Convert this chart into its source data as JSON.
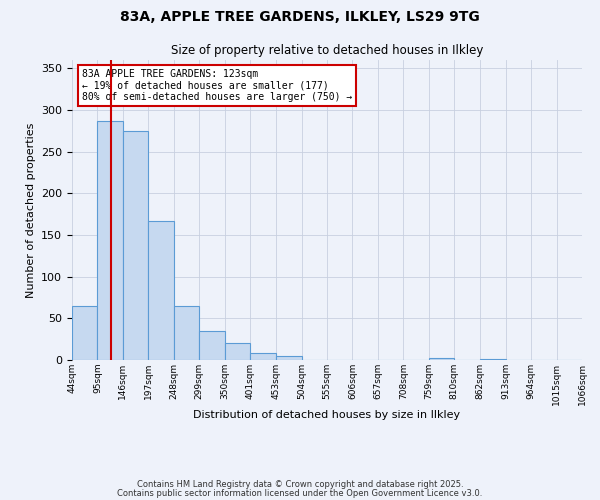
{
  "title_line1": "83A, APPLE TREE GARDENS, ILKLEY, LS29 9TG",
  "title_line2": "Size of property relative to detached houses in Ilkley",
  "xlabel": "Distribution of detached houses by size in Ilkley",
  "ylabel": "Number of detached properties",
  "bin_edges": [
    44,
    95,
    146,
    197,
    248,
    299,
    350,
    401,
    453,
    504,
    555,
    606,
    657,
    708,
    759,
    810,
    862,
    913,
    964,
    1015,
    1066
  ],
  "bin_labels": [
    "44sqm",
    "95sqm",
    "146sqm",
    "197sqm",
    "248sqm",
    "299sqm",
    "350sqm",
    "401sqm",
    "453sqm",
    "504sqm",
    "555sqm",
    "606sqm",
    "657sqm",
    "708sqm",
    "759sqm",
    "810sqm",
    "862sqm",
    "913sqm",
    "964sqm",
    "1015sqm",
    "1066sqm"
  ],
  "bar_heights": [
    65,
    287,
    275,
    167,
    65,
    35,
    20,
    9,
    5,
    0,
    0,
    0,
    0,
    0,
    2,
    0,
    1,
    0,
    0,
    0
  ],
  "bar_color": "#c6d9f0",
  "bar_edge_color": "#5b9bd5",
  "vline_x": 123,
  "vline_color": "#cc0000",
  "annotation_text": "83A APPLE TREE GARDENS: 123sqm\n← 19% of detached houses are smaller (177)\n80% of semi-detached houses are larger (750) →",
  "annotation_box_color": "#ffffff",
  "annotation_box_edge_color": "#cc0000",
  "ylim": [
    0,
    360
  ],
  "yticks": [
    0,
    50,
    100,
    150,
    200,
    250,
    300,
    350
  ],
  "footnote1": "Contains HM Land Registry data © Crown copyright and database right 2025.",
  "footnote2": "Contains public sector information licensed under the Open Government Licence v3.0.",
  "bg_color": "#eef2fa",
  "plot_bg_color": "#eef2fa",
  "grid_color": "#c8d0e0"
}
